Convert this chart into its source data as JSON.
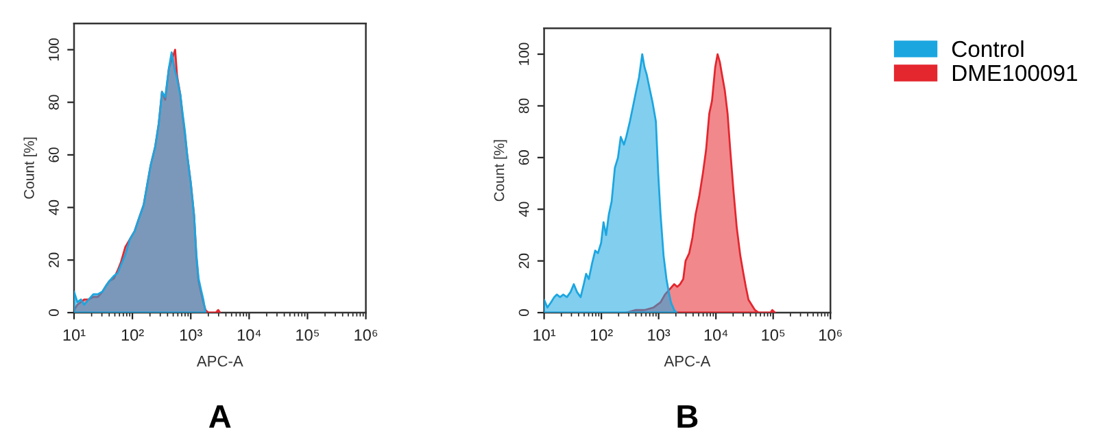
{
  "chart_data": [
    {
      "type": "area",
      "title": "A",
      "xlabel": "APC-A",
      "ylabel": "Count [%]",
      "log": "x",
      "xlim": [
        10,
        1000000
      ],
      "xticks": [
        {
          "value": 10,
          "label": "10¹"
        },
        {
          "value": 100,
          "label": "10²"
        },
        {
          "value": 1000,
          "label": "10³"
        },
        {
          "value": 10000,
          "label": "10⁴"
        },
        {
          "value": 100000,
          "label": "10⁵"
        },
        {
          "value": 1000000,
          "label": "10⁶"
        }
      ],
      "ylim": [
        0,
        110
      ],
      "yticks": [
        0,
        20,
        40,
        60,
        80,
        100
      ],
      "series": [
        {
          "color": "#1ba6e0",
          "x": [
            10,
            11.4,
            13.1,
            14.9,
            17.8,
            21.4,
            25.6,
            30.7,
            34.8,
            40.2,
            48.2,
            55.7,
            63.2,
            75.7,
            90.8,
            109,
            130,
            156,
            177,
            205,
            245,
            283,
            321,
            365,
            422,
            470,
            524,
            583,
            662,
            724,
            794,
            869,
            1005,
            1140,
            1250,
            1360,
            1490,
            1640,
            1790
          ],
          "values": [
            8,
            4,
            5,
            3,
            5,
            7,
            7,
            8,
            10,
            12,
            14,
            15,
            18,
            22,
            28,
            31,
            36,
            41,
            48,
            56,
            63,
            72,
            84,
            82,
            93,
            99,
            93,
            89,
            83,
            76,
            69,
            60,
            49,
            37,
            22,
            13,
            9,
            5,
            0
          ]
        },
        {
          "color": "#e4262e",
          "x": [
            10,
            11.4,
            13.1,
            14.9,
            17.8,
            21.4,
            25.6,
            30.7,
            34.8,
            40.2,
            48.2,
            55.7,
            63.2,
            75.7,
            90.8,
            109,
            130,
            156,
            177,
            205,
            245,
            283,
            321,
            365,
            422,
            470,
            540,
            583,
            662,
            724,
            794,
            869,
            1005,
            1140,
            1250,
            1360,
            1490,
            1640,
            1790,
            2000,
            2700,
            2950,
            3200
          ],
          "values": [
            1,
            3,
            4,
            5,
            5,
            6,
            6,
            8,
            10,
            12,
            13,
            16,
            19,
            25,
            28,
            31,
            36,
            41,
            48,
            56,
            63,
            72,
            84,
            81,
            93,
            96,
            100,
            90,
            83,
            75,
            68,
            60,
            49,
            37,
            21,
            12,
            8,
            4,
            1,
            0,
            0,
            1,
            0
          ]
        }
      ]
    },
    {
      "type": "area",
      "title": "B",
      "xlabel": "APC-A",
      "ylabel": "Count [%]",
      "log": "x",
      "legend": "top right",
      "xlim": [
        10,
        1000000
      ],
      "xticks": [
        {
          "value": 10,
          "label": "10¹"
        },
        {
          "value": 100,
          "label": "10²"
        },
        {
          "value": 1000,
          "label": "10³"
        },
        {
          "value": 10000,
          "label": "10⁴"
        },
        {
          "value": 100000,
          "label": "10⁵"
        },
        {
          "value": 1000000,
          "label": "10⁶"
        }
      ],
      "ylim": [
        0,
        110
      ],
      "yticks": [
        0,
        20,
        40,
        60,
        80,
        100
      ],
      "series": [
        {
          "name": "Control",
          "color": "#1ba6e0",
          "x": [
            10,
            11.4,
            13.2,
            15,
            16.7,
            19,
            21.6,
            25,
            29,
            33,
            37.5,
            43.4,
            49.3,
            54.1,
            60.4,
            68.7,
            78,
            87.1,
            99,
            109,
            121,
            135,
            151,
            172,
            195,
            218,
            248,
            272,
            315,
            358,
            407,
            454,
            517,
            566,
            621,
            706,
            788,
            895,
            982,
            1080,
            1220,
            1370,
            1500,
            1640,
            1870,
            2050
          ],
          "values": [
            5,
            2,
            4,
            6,
            7,
            6,
            7,
            6,
            8,
            11,
            8,
            6,
            11,
            15,
            13,
            19,
            24,
            23,
            27,
            35,
            30,
            38,
            43,
            56,
            60,
            68,
            65,
            68,
            74,
            80,
            86,
            91,
            100,
            95,
            92,
            86,
            81,
            74,
            54,
            38,
            22,
            13,
            8,
            4,
            1,
            0
          ]
        },
        {
          "name": "DME100091",
          "color": "#e4262e",
          "x": [
            272,
            393,
            566,
            817,
            1080,
            1290,
            1550,
            1870,
            2120,
            2370,
            2690,
            2950,
            3420,
            3890,
            4420,
            5120,
            5930,
            6740,
            7660,
            8550,
            9730,
            10700,
            11700,
            12800,
            14300,
            16000,
            17800,
            20300,
            23100,
            26700,
            30300,
            33300,
            37100,
            42200,
            48000,
            55600,
            90000,
            96400,
            108000
          ],
          "values": [
            0,
            1,
            1,
            2,
            4,
            7,
            9,
            11,
            10,
            11,
            13,
            20,
            23,
            29,
            38,
            45,
            54,
            63,
            77,
            82,
            95,
            100,
            97,
            92,
            86,
            77,
            63,
            47,
            33,
            22,
            15,
            10,
            5,
            3,
            1,
            0,
            0,
            1,
            0
          ]
        }
      ]
    }
  ]
}
